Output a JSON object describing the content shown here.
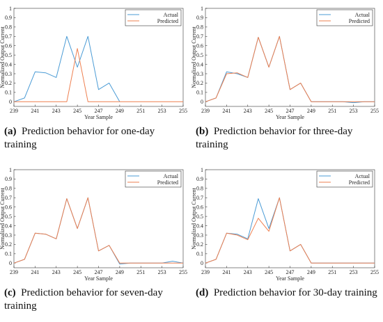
{
  "figure": {
    "captions": [
      {
        "letter": "(a)",
        "text": "Prediction behavior for one-day training"
      },
      {
        "letter": "(b)",
        "text": "Prediction behavior for three-day training"
      },
      {
        "letter": "(c)",
        "text": "Prediction behavior for seven-day training"
      },
      {
        "letter": "(d)",
        "text": "Prediction behavior for 30-day training"
      }
    ]
  },
  "colors": {
    "actual": "#4a9bd5",
    "predicted": "#ee7f4f"
  },
  "chart_data": [
    {
      "type": "line",
      "xlabel": "Year Sample",
      "ylabel": "Normalized Output Current",
      "xlim": [
        239,
        255
      ],
      "ylim": [
        -0.05,
        1
      ],
      "xticks": [
        "239",
        "241",
        "243",
        "245",
        "247",
        "249",
        "251",
        "253",
        "255"
      ],
      "yticks": [
        "0",
        "0.1",
        "0.2",
        "0.3",
        "0.4",
        "0.5",
        "0.6",
        "0.7",
        "0.8",
        "0.9",
        "1"
      ],
      "legend": "top-right",
      "series": [
        {
          "name": "Actual",
          "x": [
            239,
            240,
            241,
            242,
            243,
            244,
            245,
            246,
            247,
            248,
            249
          ],
          "values": [
            0,
            0.04,
            0.32,
            0.31,
            0.26,
            0.7,
            0.37,
            0.7,
            0.13,
            0.2,
            0
          ]
        },
        {
          "name": "Predicted",
          "x": [
            239,
            240,
            241,
            242,
            243,
            244,
            245,
            246,
            247,
            248,
            249,
            250,
            251,
            252,
            253,
            254,
            255
          ],
          "values": [
            0,
            0,
            0,
            0,
            0,
            0,
            0.57,
            0,
            0,
            0,
            0,
            0,
            0,
            0,
            0,
            0,
            0
          ]
        }
      ]
    },
    {
      "type": "line",
      "xlabel": "Year Sample",
      "ylabel": "Normalized Output Current",
      "xlim": [
        239,
        255
      ],
      "ylim": [
        -0.05,
        1
      ],
      "xticks": [
        "239",
        "241",
        "243",
        "245",
        "247",
        "249",
        "251",
        "253",
        "255"
      ],
      "yticks": [
        "0",
        "0.1",
        "0.2",
        "0.3",
        "0.4",
        "0.5",
        "0.6",
        "0.7",
        "0.8",
        "0.9",
        "1"
      ],
      "legend": "top-right",
      "series": [
        {
          "name": "Actual",
          "x": [
            239,
            240,
            241,
            242,
            243,
            244,
            245,
            246,
            247,
            248,
            249,
            250,
            251,
            252,
            253,
            254,
            255
          ],
          "values": [
            0,
            0.04,
            0.32,
            0.3,
            0.26,
            0.69,
            0.37,
            0.7,
            0.13,
            0.2,
            0,
            0,
            0,
            0,
            -0.01,
            0,
            0
          ]
        },
        {
          "name": "Predicted",
          "x": [
            239,
            240,
            241,
            242,
            243,
            244,
            245,
            246,
            247,
            248,
            249,
            250,
            251,
            252,
            253,
            254,
            255
          ],
          "values": [
            0,
            0.04,
            0.3,
            0.31,
            0.26,
            0.69,
            0.37,
            0.7,
            0.13,
            0.2,
            0,
            0,
            0,
            0,
            0,
            0,
            0
          ]
        }
      ]
    },
    {
      "type": "line",
      "xlabel": "Year Sample",
      "ylabel": "Normalized Output Current",
      "xlim": [
        239,
        255
      ],
      "ylim": [
        -0.05,
        1
      ],
      "xticks": [
        "239",
        "241",
        "243",
        "245",
        "247",
        "249",
        "251",
        "253",
        "255"
      ],
      "yticks": [
        "0",
        "0.1",
        "0.2",
        "0.3",
        "0.4",
        "0.5",
        "0.6",
        "0.7",
        "0.8",
        "0.9",
        "1"
      ],
      "legend": "top-right",
      "series": [
        {
          "name": "Actual",
          "x": [
            239,
            240,
            241,
            242,
            243,
            244,
            245,
            246,
            247,
            248,
            249,
            250,
            251,
            252,
            253,
            254,
            255
          ],
          "values": [
            0,
            0.04,
            0.32,
            0.31,
            0.26,
            0.69,
            0.37,
            0.7,
            0.13,
            0.19,
            -0.01,
            0,
            0,
            0,
            0,
            0.02,
            0
          ]
        },
        {
          "name": "Predicted",
          "x": [
            239,
            240,
            241,
            242,
            243,
            244,
            245,
            246,
            247,
            248,
            249,
            250,
            251,
            252,
            253,
            254,
            255
          ],
          "values": [
            0,
            0.04,
            0.32,
            0.31,
            0.26,
            0.69,
            0.37,
            0.7,
            0.13,
            0.19,
            0,
            0,
            0,
            0,
            0,
            0,
            0
          ]
        }
      ]
    },
    {
      "type": "line",
      "xlabel": "Year Sample",
      "ylabel": "Normalized Output Current",
      "xlim": [
        239,
        255
      ],
      "ylim": [
        -0.05,
        1
      ],
      "xticks": [
        "239",
        "241",
        "243",
        "245",
        "247",
        "249",
        "251",
        "253",
        "255"
      ],
      "yticks": [
        "0",
        "0.1",
        "0.2",
        "0.3",
        "0.4",
        "0.5",
        "0.6",
        "0.7",
        "0.8",
        "0.9",
        "1"
      ],
      "legend": "top-right",
      "series": [
        {
          "name": "Actual",
          "x": [
            239,
            240,
            241,
            242,
            243,
            244,
            245,
            246,
            247,
            248,
            249,
            250,
            251,
            252,
            253,
            254,
            255
          ],
          "values": [
            0,
            0.04,
            0.32,
            0.31,
            0.26,
            0.69,
            0.37,
            0.7,
            0.13,
            0.2,
            0,
            0,
            0,
            0,
            0,
            0,
            0
          ]
        },
        {
          "name": "Predicted",
          "x": [
            239,
            240,
            241,
            242,
            243,
            244,
            245,
            246,
            247,
            248,
            249,
            250,
            251,
            252,
            253,
            254,
            255
          ],
          "values": [
            0,
            0.04,
            0.32,
            0.3,
            0.25,
            0.48,
            0.34,
            0.7,
            0.13,
            0.2,
            0,
            0,
            0,
            0,
            0,
            0,
            0
          ]
        }
      ]
    }
  ]
}
